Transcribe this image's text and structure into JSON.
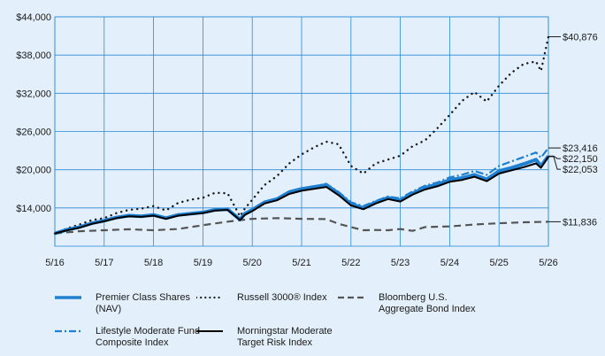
{
  "chart_data": {
    "type": "line",
    "title": "",
    "xlabel": "",
    "ylabel": "",
    "x_ticks": [
      "5/16",
      "5/17",
      "5/18",
      "5/19",
      "5/20",
      "5/21",
      "5/22",
      "5/23",
      "5/24",
      "5/25",
      "5/26"
    ],
    "y_ticks": [
      "$14,000",
      "$20,000",
      "$26,000",
      "$32,000",
      "$38,000",
      "$44,000"
    ],
    "ylim": [
      8000,
      44000
    ],
    "grid": true,
    "legend": "bottom",
    "series": [
      {
        "name": "Premier Class Shares (NAV)",
        "color": "#1f7fd0",
        "style": "solid-thick",
        "end_label": "$22,150",
        "x": [
          0,
          0.25,
          0.5,
          0.75,
          1,
          1.25,
          1.5,
          1.75,
          2,
          2.25,
          2.5,
          2.75,
          3,
          3.25,
          3.5,
          3.75,
          3.85,
          4,
          4.25,
          4.5,
          4.75,
          5,
          5.25,
          5.5,
          5.75,
          6,
          6.25,
          6.5,
          6.75,
          7,
          7.25,
          7.5,
          7.75,
          8,
          8.25,
          8.5,
          8.75,
          9,
          9.25,
          9.5,
          9.75,
          9.85,
          10
        ],
        "y": [
          10000,
          10600,
          11000,
          11600,
          12000,
          12500,
          12800,
          12700,
          12900,
          12400,
          12900,
          13100,
          13300,
          13700,
          13800,
          12200,
          13100,
          13700,
          14900,
          15400,
          16500,
          17000,
          17300,
          17600,
          16300,
          14600,
          14000,
          14900,
          15600,
          15200,
          16300,
          17200,
          17700,
          18400,
          18700,
          19200,
          18500,
          19800,
          20300,
          20900,
          21600,
          20600,
          22150
        ]
      },
      {
        "name": "Russell 3000® Index",
        "color": "#1a1a1a",
        "style": "dotted",
        "end_label": "$40,876",
        "x": [
          0,
          0.25,
          0.5,
          0.75,
          1,
          1.25,
          1.5,
          1.75,
          2,
          2.25,
          2.5,
          2.75,
          3,
          3.25,
          3.5,
          3.75,
          3.85,
          4,
          4.25,
          4.5,
          4.75,
          5,
          5.25,
          5.5,
          5.75,
          6,
          6.25,
          6.5,
          6.75,
          7,
          7.25,
          7.5,
          7.75,
          8,
          8.25,
          8.5,
          8.75,
          9,
          9.25,
          9.5,
          9.75,
          9.85,
          10
        ],
        "y": [
          10000,
          10800,
          11400,
          12100,
          12400,
          13200,
          13700,
          13900,
          14300,
          13600,
          14800,
          15300,
          15600,
          16400,
          16300,
          12700,
          13900,
          15300,
          17600,
          19000,
          21000,
          22400,
          23500,
          24400,
          24000,
          20600,
          19400,
          21000,
          21600,
          22200,
          23700,
          24600,
          26500,
          28600,
          30800,
          32200,
          30700,
          33200,
          35200,
          36600,
          37000,
          35500,
          40876
        ]
      },
      {
        "name": "Bloomberg U.S. Aggregate Bond Index",
        "color": "#555555",
        "style": "dashed",
        "end_label": "$11,836",
        "x": [
          0,
          0.5,
          1,
          1.5,
          2,
          2.5,
          3,
          3.5,
          4,
          4.5,
          5,
          5.5,
          5.75,
          6,
          6.25,
          6.5,
          6.75,
          7,
          7.25,
          7.5,
          8,
          8.5,
          9,
          9.5,
          10
        ],
        "y": [
          10000,
          10350,
          10500,
          10650,
          10500,
          10700,
          11300,
          11850,
          12300,
          12400,
          12300,
          12250,
          11500,
          11000,
          10500,
          10550,
          10500,
          10700,
          10400,
          11000,
          11100,
          11400,
          11600,
          11750,
          11836
        ]
      },
      {
        "name": "Lifestyle Moderate Fund Composite Index",
        "color": "#1f7fd0",
        "style": "dashdot",
        "end_label": "$23,416",
        "x": [
          0,
          0.25,
          0.5,
          0.75,
          1,
          1.25,
          1.5,
          1.75,
          2,
          2.25,
          2.5,
          2.75,
          3,
          3.25,
          3.5,
          3.75,
          3.85,
          4,
          4.25,
          4.5,
          4.75,
          5,
          5.25,
          5.5,
          5.75,
          6,
          6.25,
          6.5,
          6.75,
          7,
          7.25,
          7.5,
          7.75,
          8,
          8.25,
          8.5,
          8.75,
          9,
          9.25,
          9.5,
          9.75,
          9.85,
          10
        ],
        "y": [
          10000,
          10600,
          11000,
          11600,
          12000,
          12500,
          12900,
          12800,
          13000,
          12500,
          13000,
          13200,
          13400,
          13800,
          13900,
          12300,
          13200,
          13800,
          15000,
          15500,
          16600,
          17100,
          17400,
          17800,
          16500,
          14900,
          14300,
          15100,
          15800,
          15500,
          16600,
          17500,
          18000,
          18800,
          19200,
          19800,
          19200,
          20600,
          21300,
          22000,
          22700,
          21900,
          23416
        ]
      },
      {
        "name": "Morningstar Moderate Target Risk Index",
        "color": "#000000",
        "style": "solid",
        "end_label": "$22,053",
        "x": [
          0,
          0.25,
          0.5,
          0.75,
          1,
          1.25,
          1.5,
          1.75,
          2,
          2.25,
          2.5,
          2.75,
          3,
          3.25,
          3.5,
          3.75,
          3.85,
          4,
          4.25,
          4.5,
          4.75,
          5,
          5.25,
          5.5,
          5.75,
          6,
          6.25,
          6.5,
          6.75,
          7,
          7.25,
          7.5,
          7.75,
          8,
          8.25,
          8.5,
          8.75,
          9,
          9.25,
          9.5,
          9.75,
          9.85,
          10
        ],
        "y": [
          10000,
          10500,
          10900,
          11500,
          11900,
          12400,
          12700,
          12600,
          12800,
          12300,
          12800,
          13000,
          13200,
          13600,
          13700,
          12100,
          12900,
          13500,
          14700,
          15200,
          16200,
          16700,
          17000,
          17300,
          16000,
          14400,
          13800,
          14700,
          15400,
          15000,
          16100,
          16900,
          17400,
          18100,
          18400,
          18900,
          18200,
          19400,
          19900,
          20400,
          21000,
          20300,
          22053
        ]
      }
    ]
  },
  "legend": {
    "premier": "Premier Class Shares (NAV)",
    "russell": "Russell 3000® Index",
    "bloomberg": "Bloomberg U.S. Aggregate Bond Index",
    "lifestyle": "Lifestyle Moderate Fund Composite Index",
    "morningstar": "Morningstar Moderate Target Risk Index"
  }
}
